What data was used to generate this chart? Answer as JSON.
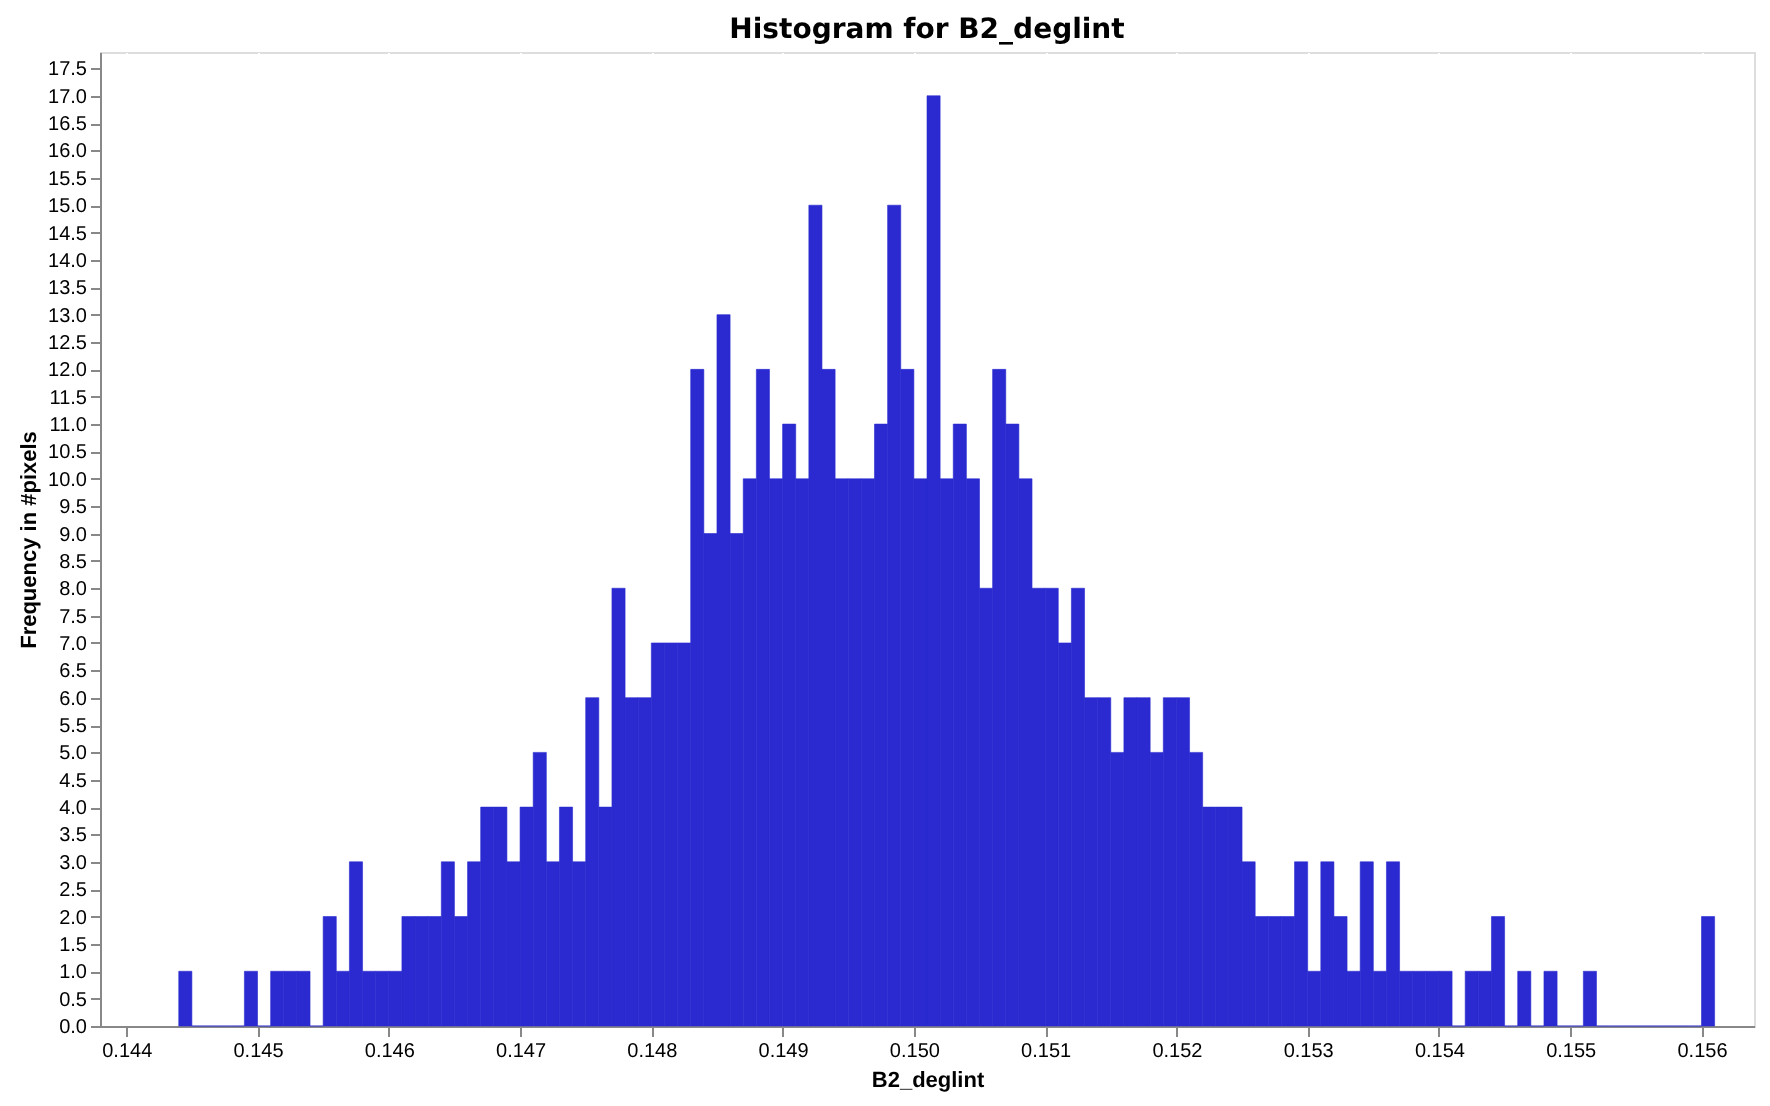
{
  "chart_data": {
    "type": "histogram",
    "title": "Histogram for B2_deglint",
    "xlabel": "B2_deglint",
    "ylabel": "Frequency in #pixels",
    "color": "#2a2ad0",
    "bins": [
      0.1444,
      0.1445,
      0.1446,
      0.1447,
      0.1448,
      0.1449,
      0.145,
      0.1451,
      0.1452,
      0.1453,
      0.1454,
      0.1455,
      0.1456,
      0.1457,
      0.1458,
      0.1459,
      0.146,
      0.1461,
      0.1462,
      0.1463,
      0.1464,
      0.1465,
      0.1466,
      0.1467,
      0.1468,
      0.1469,
      0.147,
      0.1471,
      0.1472,
      0.1473,
      0.1474,
      0.1475,
      0.1476,
      0.1477,
      0.1478,
      0.1479,
      0.148,
      0.1481,
      0.1482,
      0.1483,
      0.1484,
      0.1485,
      0.1486,
      0.1487,
      0.1488,
      0.1489,
      0.149,
      0.1491,
      0.1492,
      0.1493,
      0.1494,
      0.1495,
      0.1496,
      0.1497,
      0.1498,
      0.1499,
      0.15,
      0.1501,
      0.1502,
      0.1503,
      0.1504,
      0.1505,
      0.1506,
      0.1507,
      0.1508,
      0.1509,
      0.151,
      0.1511,
      0.1512,
      0.1513,
      0.1514,
      0.1515,
      0.1516,
      0.1517,
      0.1518,
      0.1519,
      0.152,
      0.1521,
      0.1522,
      0.1523,
      0.1524,
      0.1525,
      0.1526,
      0.1527,
      0.1528,
      0.1529,
      0.153,
      0.1531,
      0.1532,
      0.1533,
      0.1534,
      0.1535,
      0.1536,
      0.1537,
      0.1538,
      0.1539,
      0.154,
      0.1541,
      0.1542,
      0.1543,
      0.1544,
      0.1545,
      0.1546,
      0.1547,
      0.1548,
      0.1549,
      0.155,
      0.1551,
      0.1552,
      0.1553,
      0.1554,
      0.1555,
      0.1556,
      0.1557,
      0.1558,
      0.1559,
      0.156,
      0.1561
    ],
    "values": [
      1,
      0,
      0,
      0,
      0,
      1,
      0,
      1,
      1,
      1,
      0,
      2,
      1,
      3,
      1,
      1,
      1,
      2,
      2,
      2,
      3,
      2,
      3,
      4,
      4,
      3,
      4,
      5,
      3,
      4,
      3,
      6,
      4,
      8,
      6,
      6,
      7,
      7,
      7,
      12,
      9,
      13,
      9,
      10,
      12,
      10,
      11,
      10,
      15,
      12,
      10,
      10,
      10,
      11,
      15,
      12,
      10,
      17,
      10,
      11,
      10,
      8,
      12,
      11,
      10,
      8,
      8,
      7,
      8,
      6,
      6,
      5,
      6,
      6,
      5,
      6,
      6,
      5,
      4,
      4,
      4,
      3,
      2,
      2,
      2,
      3,
      1,
      3,
      2,
      1,
      3,
      1,
      3,
      1,
      1,
      1,
      1,
      0,
      1,
      1,
      2,
      0,
      1,
      0,
      1,
      0,
      0,
      1,
      0,
      0,
      0,
      0,
      0,
      0,
      0,
      0,
      2
    ],
    "xlim": [
      0.1438,
      0.1564
    ],
    "xticks": [
      0.144,
      0.145,
      0.146,
      0.147,
      0.148,
      0.149,
      {
        "value": 0.15,
        "label": "0.150"
      },
      0.151,
      0.152,
      0.153,
      0.154,
      0.155,
      0.156
    ],
    "ylim": [
      0,
      17.8
    ],
    "yticks": [
      {
        "value": 0,
        "label": "0.0"
      },
      {
        "value": 0.5,
        "label": "0.5"
      },
      {
        "value": 1,
        "label": "1.0"
      },
      {
        "value": 1.5,
        "label": "1.5"
      },
      {
        "value": 2,
        "label": "2.0"
      },
      {
        "value": 2.5,
        "label": "2.5"
      },
      {
        "value": 3,
        "label": "3.0"
      },
      {
        "value": 3.5,
        "label": "3.5"
      },
      {
        "value": 4,
        "label": "4.0"
      },
      {
        "value": 4.5,
        "label": "4.5"
      },
      {
        "value": 5,
        "label": "5.0"
      },
      {
        "value": 5.5,
        "label": "5.5"
      },
      {
        "value": 6,
        "label": "6.0"
      },
      {
        "value": 6.5,
        "label": "6.5"
      },
      {
        "value": 7,
        "label": "7.0"
      },
      {
        "value": 7.5,
        "label": "7.5"
      },
      {
        "value": 8,
        "label": "8.0"
      },
      {
        "value": 8.5,
        "label": "8.5"
      },
      {
        "value": 9,
        "label": "9.0"
      },
      {
        "value": 9.5,
        "label": "9.5"
      },
      {
        "value": 10,
        "label": "10.0"
      },
      {
        "value": 10.5,
        "label": "10.5"
      },
      {
        "value": 11,
        "label": "11.0"
      },
      {
        "value": 11.5,
        "label": "11.5"
      },
      {
        "value": 12,
        "label": "12.0"
      },
      {
        "value": 12.5,
        "label": "12.5"
      },
      {
        "value": 13,
        "label": "13.0"
      },
      {
        "value": 13.5,
        "label": "13.5"
      },
      {
        "value": 14,
        "label": "14.0"
      },
      {
        "value": 14.5,
        "label": "14.5"
      },
      {
        "value": 15,
        "label": "15.0"
      },
      {
        "value": 15.5,
        "label": "15.5"
      },
      {
        "value": 16,
        "label": "16.0"
      },
      {
        "value": 16.5,
        "label": "16.5"
      },
      {
        "value": 17,
        "label": "17.0"
      },
      {
        "value": 17.5,
        "label": "17.5"
      }
    ],
    "grid": true
  }
}
